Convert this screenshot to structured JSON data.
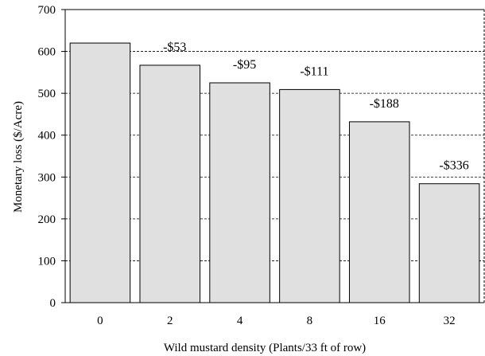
{
  "chart_data": {
    "type": "bar",
    "title": "",
    "xlabel": "Wild mustard density (Plants/33 ft of row)",
    "ylabel": "Monetary loss ($/Acre)",
    "categories": [
      "0",
      "2",
      "4",
      "8",
      "16",
      "32"
    ],
    "values": [
      620,
      567,
      525,
      509,
      432,
      284
    ],
    "data_labels": [
      "",
      "-$53",
      "-$95",
      "-$111",
      "-$188",
      "-$336"
    ],
    "ylim": [
      0,
      700
    ],
    "yticks": [
      0,
      100,
      200,
      300,
      400,
      500,
      600,
      700
    ],
    "grid": "horizontal-dashed",
    "bar_color": "#e0e0e0",
    "bar_stroke": "#000000"
  }
}
